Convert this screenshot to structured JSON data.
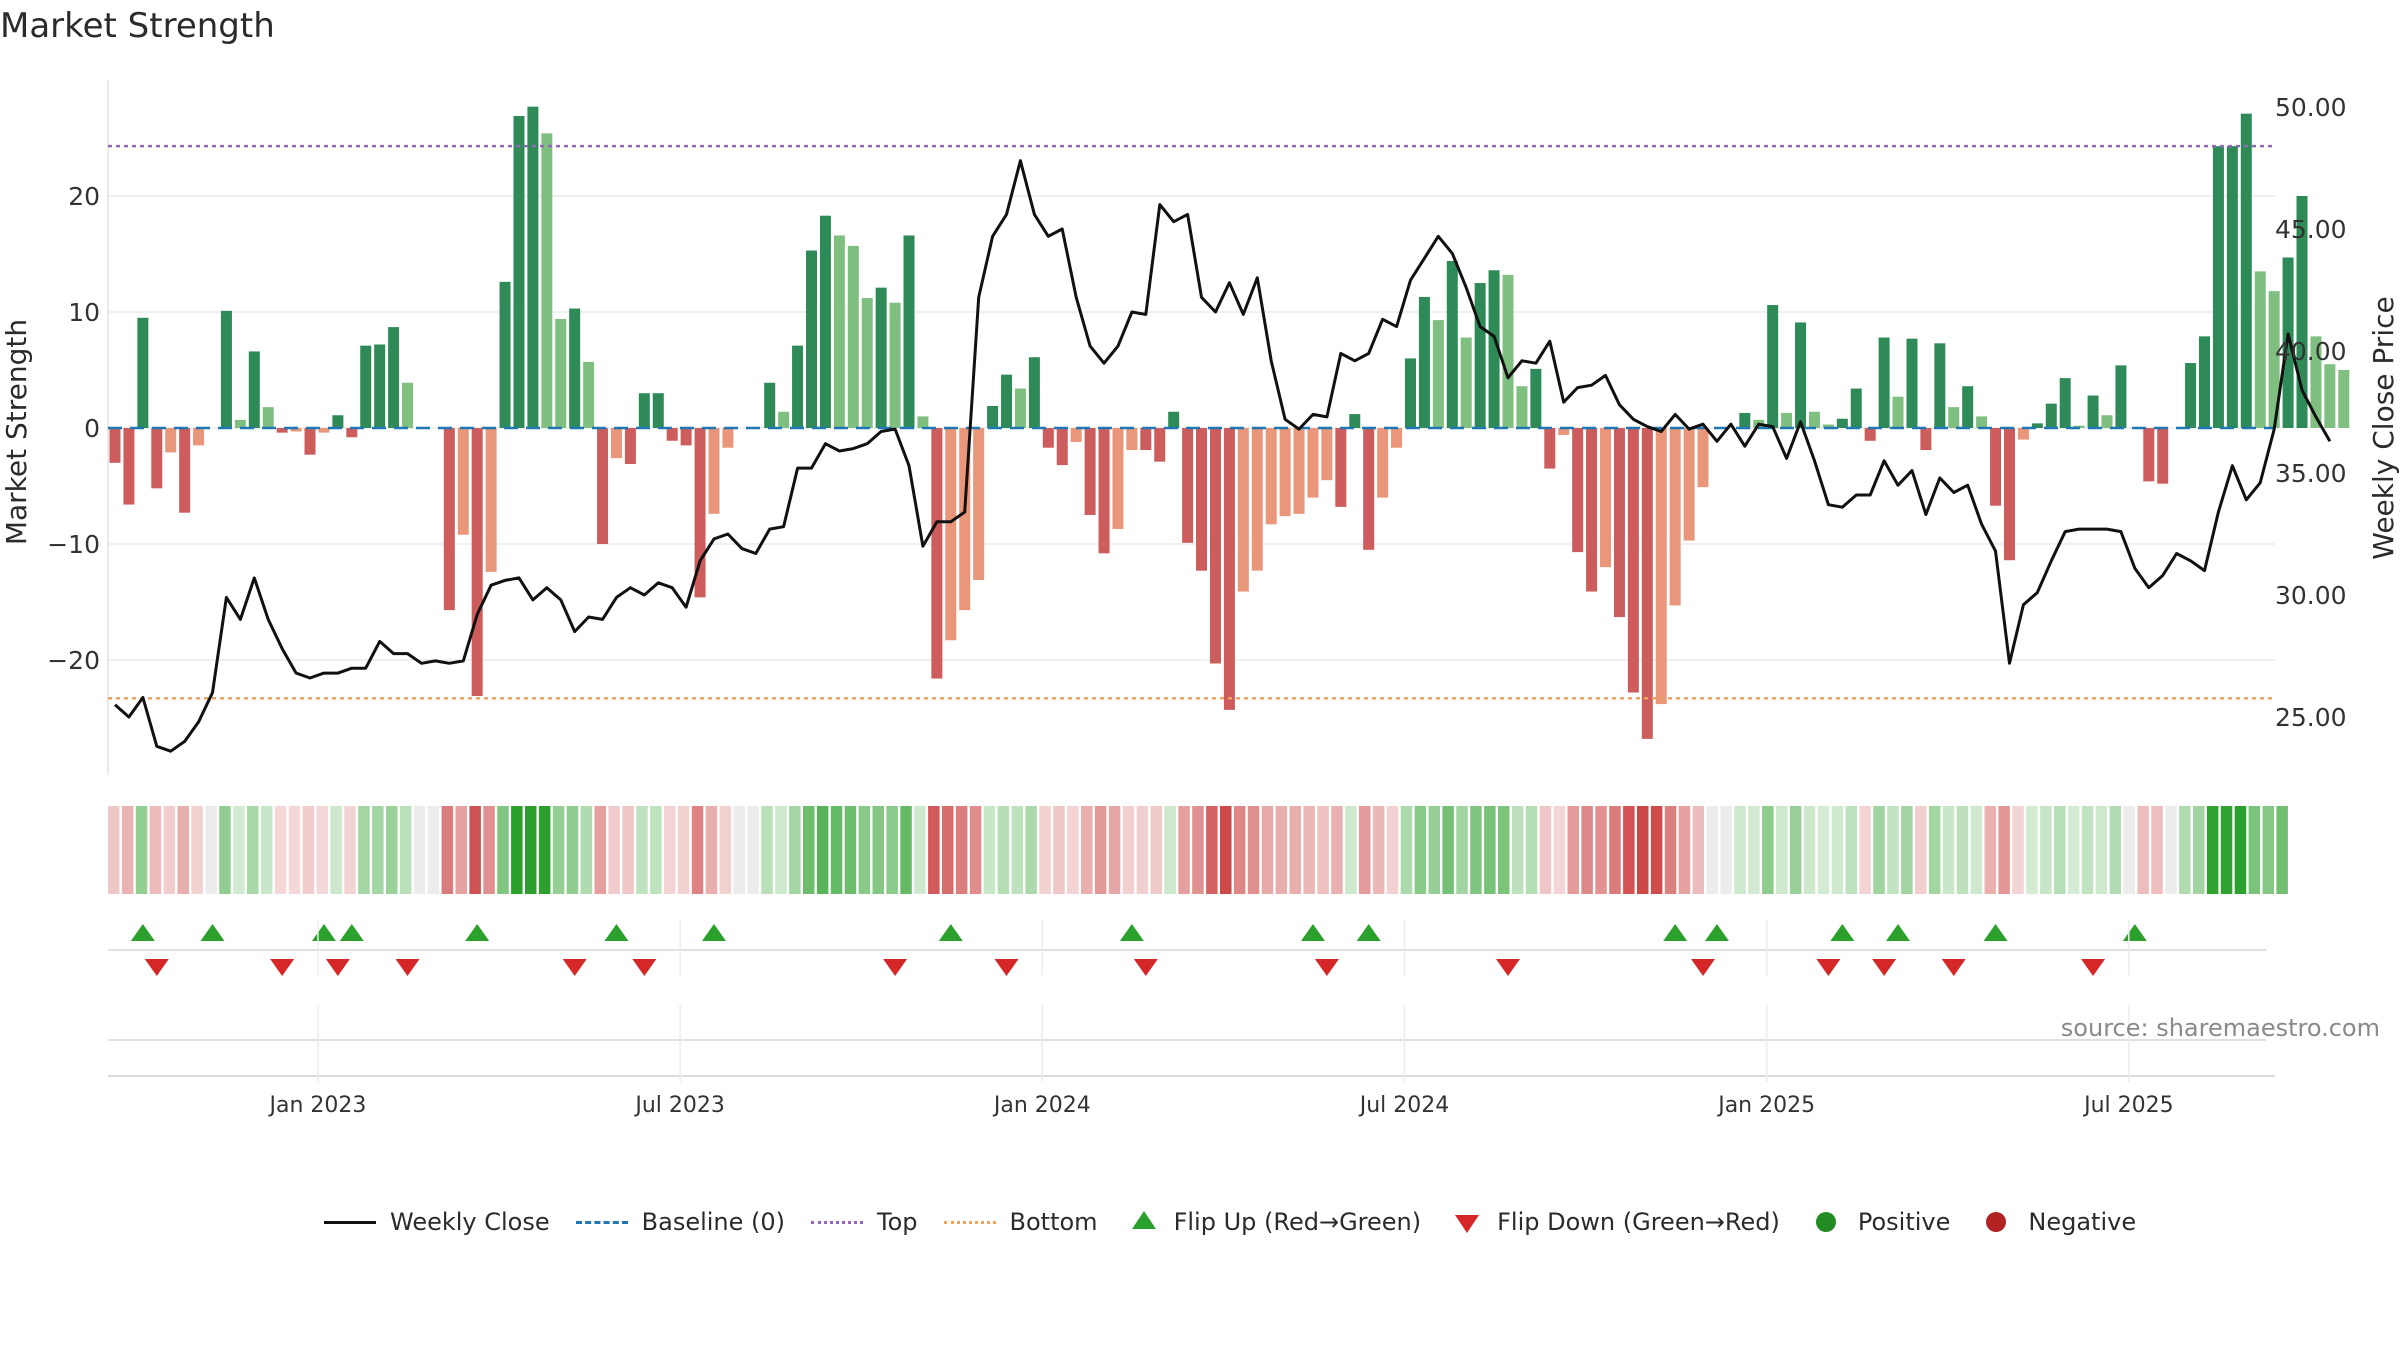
{
  "chart_data": {
    "type": "bar",
    "title": "Market Strength",
    "ylabel": "Market Strength",
    "y2label": "Weekly Close Price",
    "ylim": [
      -29,
      30
    ],
    "y2lim": [
      22.5,
      51.0
    ],
    "yticks": [
      20,
      10,
      0,
      -10,
      -20
    ],
    "ytick_labels": [
      "20",
      "10",
      "0",
      "−10",
      "−20"
    ],
    "y2ticks": [
      50.0,
      45.0,
      40.0,
      35.0,
      30.0,
      25.0
    ],
    "y2tick_labels": [
      "50.00",
      "45.00",
      "40.00",
      "35.00",
      "30.00",
      "25.00"
    ],
    "top_level": 24.3,
    "bottom_level": -23.3,
    "xticks": [
      {
        "week": 15,
        "label": "Jan 2023"
      },
      {
        "week": 41,
        "label": "Jul 2023"
      },
      {
        "week": 67,
        "label": "Jan 2024"
      },
      {
        "week": 93,
        "label": "Jul 2024"
      },
      {
        "week": 119,
        "label": "Jan 2025"
      },
      {
        "week": 145,
        "label": "Jul 2025"
      }
    ],
    "strength": [
      -3,
      -6.6,
      9.5,
      -5.2,
      -2.1,
      -7.3,
      -1.5,
      0,
      10.1,
      0.7,
      6.6,
      1.8,
      -0.4,
      -0.3,
      -2.3,
      -0.4,
      1.1,
      -0.8,
      7.1,
      7.2,
      8.7,
      3.9,
      0,
      0,
      -15.7,
      -9.2,
      -23.1,
      -12.4,
      12.6,
      26.9,
      27.7,
      25.4,
      9.4,
      10.3,
      5.7,
      -10,
      -2.6,
      -3.1,
      3,
      3,
      -1.1,
      -1.5,
      -14.6,
      -7.4,
      -1.7,
      0,
      0,
      3.9,
      1.4,
      7.1,
      15.3,
      18.3,
      16.6,
      15.7,
      11.2,
      12.1,
      10.8,
      16.6,
      1.0,
      -21.6,
      -18.3,
      -15.7,
      -13.1,
      1.9,
      4.6,
      3.4,
      6.1,
      -1.7,
      -3.2,
      -1.2,
      -7.5,
      -10.8,
      -8.7,
      -1.9,
      -1.9,
      -2.9,
      1.4,
      -9.9,
      -12.3,
      -20.3,
      -24.3,
      -14.1,
      -12.3,
      -8.3,
      -7.6,
      -7.4,
      -6.0,
      -4.5,
      -6.8,
      1.2,
      -10.5,
      -6.0,
      -1.7,
      6.0,
      11.3,
      9.3,
      14.4,
      7.8,
      12.5,
      13.6,
      13.2,
      3.6,
      5.1,
      -3.5,
      -0.6,
      -10.7,
      -14.1,
      -12.0,
      -16.3,
      -22.8,
      -26.8,
      -23.8,
      -15.3,
      -9.7,
      -5.1,
      0,
      0,
      1.3,
      0.7,
      10.6,
      1.3,
      9.1,
      1.4,
      0.3,
      0.8,
      3.4,
      -1.1,
      7.8,
      2.7,
      7.7,
      -1.9,
      7.3,
      1.8,
      3.6,
      1.0,
      -6.7,
      -11.4,
      -1.0,
      0.4,
      2.1,
      4.3,
      0.2,
      2.8,
      1.1,
      5.4,
      0,
      -4.6,
      -4.8,
      0,
      5.6,
      7.9,
      24.3,
      24.3,
      27.1,
      13.5,
      11.8,
      14.7,
      20.0,
      7.9,
      5.5,
      5.0
    ],
    "weekly_close": [
      25.5,
      25.0,
      25.8,
      23.8,
      23.6,
      24.0,
      24.8,
      26.0,
      29.9,
      29.0,
      30.7,
      29.0,
      27.8,
      26.8,
      26.6,
      26.8,
      26.8,
      27.0,
      27.0,
      28.1,
      27.6,
      27.6,
      27.2,
      27.3,
      27.2,
      27.3,
      29.2,
      30.4,
      30.6,
      30.7,
      29.8,
      30.3,
      29.8,
      28.5,
      29.1,
      29.0,
      29.9,
      30.3,
      30.0,
      30.5,
      30.3,
      29.5,
      31.4,
      32.3,
      32.5,
      31.9,
      31.7,
      32.7,
      32.8,
      35.2,
      35.2,
      36.2,
      35.9,
      36.0,
      36.2,
      36.7,
      36.8,
      35.3,
      32.0,
      33.0,
      33.0,
      33.4,
      42.2,
      44.7,
      45.6,
      47.8,
      45.6,
      44.7,
      45.0,
      42.2,
      40.2,
      39.5,
      40.2,
      41.6,
      41.5,
      46.0,
      45.3,
      45.6,
      42.2,
      41.6,
      42.8,
      41.5,
      43.0,
      39.6,
      37.2,
      36.8,
      37.4,
      37.3,
      39.9,
      39.6,
      39.9,
      41.3,
      41.0,
      42.9,
      43.8,
      44.7,
      44.0,
      42.6,
      41.0,
      40.6,
      38.9,
      39.6,
      39.5,
      40.4,
      37.9,
      38.5,
      38.6,
      39.0,
      37.8,
      37.2,
      36.9,
      36.7,
      37.4,
      36.8,
      37.0,
      36.3,
      37.0,
      36.1,
      37.0,
      36.9,
      35.6,
      37.1,
      35.5,
      33.7,
      33.6,
      34.1,
      34.1,
      35.5,
      34.5,
      35.1,
      33.3,
      34.8,
      34.2,
      34.5,
      32.9,
      31.8,
      27.2,
      29.6,
      30.1,
      31.4,
      32.6,
      32.7,
      32.7,
      32.7,
      32.6,
      31.1,
      30.3,
      30.8,
      31.7,
      31.4,
      31.0,
      33.4,
      35.3,
      33.9,
      34.6,
      36.8,
      40.7,
      38.4,
      37.3,
      36.3
    ],
    "heat_strip_weeks": 157,
    "flip_up_weeks": [
      2,
      7,
      15,
      17,
      26,
      36,
      43,
      60,
      73,
      86,
      90,
      112,
      115,
      124,
      128,
      135,
      145
    ],
    "flip_down_weeks": [
      3,
      12,
      16,
      21,
      33,
      38,
      56,
      64,
      74,
      87,
      100,
      114,
      123,
      127,
      132,
      142
    ],
    "legend": [
      "Weekly Close",
      "Baseline (0)",
      "Top",
      "Bottom",
      "Flip Up (Red→Green)",
      "Flip Down (Green→Red)",
      "Positive",
      "Negative"
    ],
    "colors": {
      "pos_dark": "#2e8b57",
      "pos_light": "#7fbf7f",
      "neg_dark": "#cd5c5c",
      "neg_light": "#e9967a",
      "close": "#111111",
      "baseline": "#1f77b4",
      "top": "#9467bd",
      "bottom": "#f0a35a",
      "flip_up": "#2ca02c",
      "flip_down": "#d62728",
      "positive_dot": "#228b22",
      "negative_dot": "#b22222"
    }
  },
  "source_text": "source: sharemaestro.com"
}
